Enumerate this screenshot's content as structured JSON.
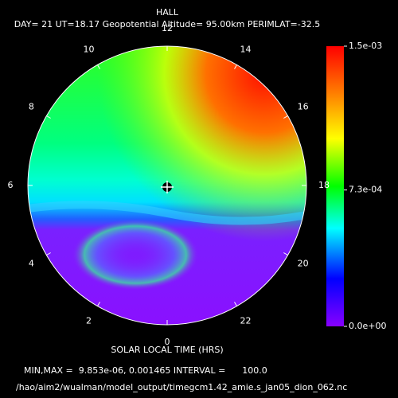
{
  "chart_data": {
    "type": "polar-contour",
    "title": "HALL",
    "subtitle": "DAY= 21 UT=18.17 Geopotential Altitude= 95.00km PERIMLAT=-32.5",
    "xlabel": "SOLAR LOCAL TIME (HRS)",
    "hour_ticks": [
      0,
      2,
      4,
      6,
      8,
      10,
      12,
      14,
      16,
      18,
      20,
      22
    ],
    "clim": [
      0,
      0.0015
    ],
    "cticks": [
      {
        "value": 0.0015,
        "label": "1.5e-03"
      },
      {
        "value": 0.00073,
        "label": "7.3e-04"
      },
      {
        "value": 0,
        "label": "0.0e+00"
      }
    ],
    "stats": "MIN,MAX =  9.853e-06, 0.001465 INTERVAL =      100.0",
    "file": "/hao/aim2/wualman/model_output/timegcm1.42_amie.s_jan05_dion_062.nc"
  }
}
